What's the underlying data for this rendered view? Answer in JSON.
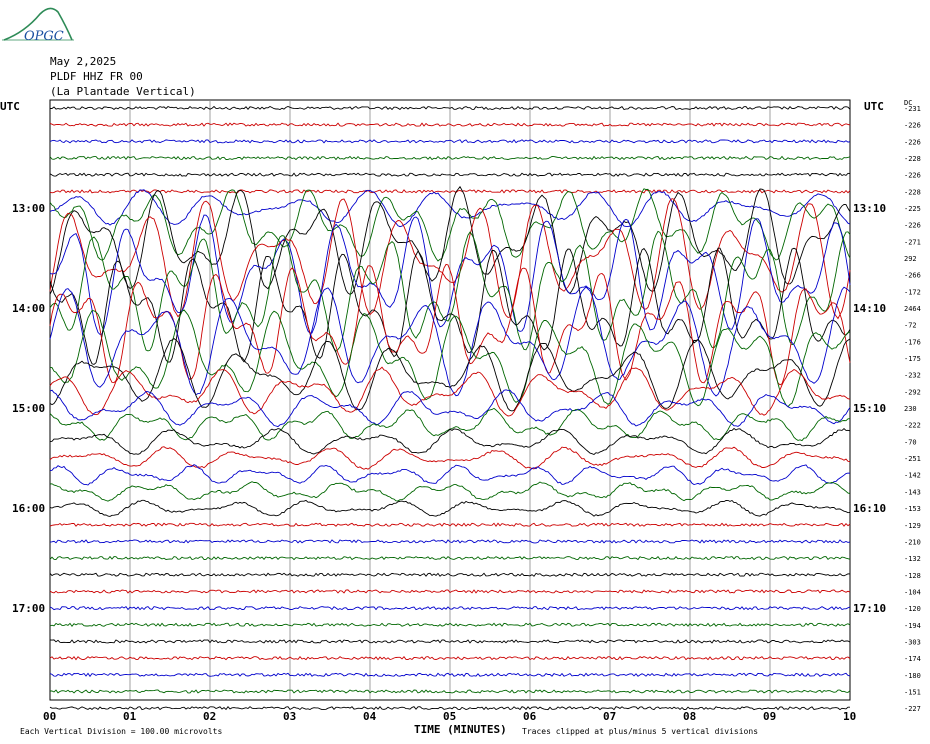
{
  "logo": {
    "text": "OPGC",
    "icon": "mountain-logo-icon"
  },
  "header": {
    "date": "May 2,2025",
    "station": "PLDF HHZ FR 00",
    "location": "(La Plantade Vertical)"
  },
  "chart_data": {
    "type": "line",
    "left_axis_title": "UTC",
    "right_axis_title": "UTC",
    "dc_label": "DC",
    "xlabel": "TIME (MINUTES)",
    "x_ticks": [
      "00",
      "01",
      "02",
      "03",
      "04",
      "05",
      "06",
      "07",
      "08",
      "09",
      "10"
    ],
    "xlim": [
      0,
      10
    ],
    "left_time_labels": [
      {
        "label": "13:00",
        "trace_index": 6
      },
      {
        "label": "14:00",
        "trace_index": 12
      },
      {
        "label": "15:00",
        "trace_index": 18
      },
      {
        "label": "16:00",
        "trace_index": 24
      },
      {
        "label": "17:00",
        "trace_index": 30
      }
    ],
    "right_time_labels": [
      {
        "label": "13:10",
        "trace_index": 6
      },
      {
        "label": "14:10",
        "trace_index": 12
      },
      {
        "label": "15:10",
        "trace_index": 18
      },
      {
        "label": "16:10",
        "trace_index": 24
      },
      {
        "label": "17:10",
        "trace_index": 30
      }
    ],
    "trace_colors": [
      "#000000",
      "#cc0000",
      "#0000cc",
      "#006600"
    ],
    "dc_offsets": [
      -231,
      -226,
      -226,
      -228,
      -226,
      -228,
      -225,
      -226,
      -271,
      292,
      -266,
      -172,
      2464,
      -72,
      -176,
      -175,
      -232,
      -292,
      230,
      -222,
      -70,
      -251,
      -142,
      -143,
      -153,
      -129,
      -210,
      -132,
      -128,
      -104,
      -120,
      -194,
      -303,
      -174,
      -180,
      -151,
      -227
    ],
    "amplitudes": [
      1,
      1,
      1,
      1,
      1,
      1,
      3,
      6,
      9,
      10,
      10,
      10,
      10,
      10,
      9,
      8,
      6,
      4,
      3,
      2.6,
      2.2,
      1.8,
      1.6,
      1.5,
      1.3,
      1.2,
      1.1,
      1,
      0.9,
      0.9,
      0.8,
      0.8,
      0.8,
      0.8,
      0.7,
      0.7,
      0.6
    ],
    "footer_scale": "Each Vertical Division =  100.00 microvolts",
    "footer_clip": "Traces clipped at plus/minus 5 vertical divisions"
  }
}
